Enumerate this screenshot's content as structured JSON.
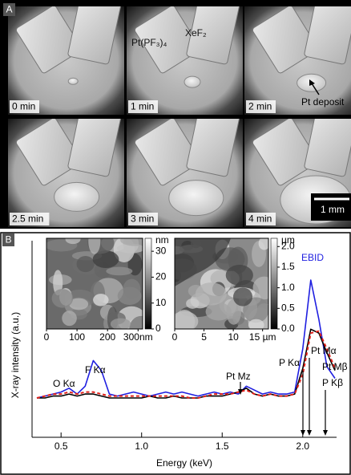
{
  "panel_a": {
    "label": "A",
    "frames": [
      "0 min",
      "1 min",
      "2 min",
      "2.5 min",
      "3 min",
      "4 min"
    ],
    "precursor_label": "Pt(PF₃)₄",
    "etchant_label": "XeF₂",
    "deposit_label": "Pt deposit",
    "scale_bar": "1 mm"
  },
  "panel_b_label": "B",
  "chart_data": {
    "type": "line",
    "xlabel": "Energy (keV)",
    "ylabel": "X-ray intensity (a.u.)",
    "xlim": [
      0.32,
      2.21
    ],
    "ylim": [
      0,
      10
    ],
    "xticks": [
      0.5,
      {
        "value": 1.0,
        "label": "1.0"
      },
      1.5,
      {
        "value": 2.0,
        "label": "2.0"
      }
    ],
    "x": [
      0.35,
      0.4,
      0.45,
      0.5,
      0.55,
      0.6,
      0.65,
      0.7,
      0.75,
      0.8,
      0.85,
      0.9,
      0.95,
      1.0,
      1.05,
      1.1,
      1.15,
      1.2,
      1.25,
      1.3,
      1.35,
      1.4,
      1.45,
      1.5,
      1.55,
      1.6,
      1.65,
      1.7,
      1.75,
      1.8,
      1.85,
      1.9,
      1.95,
      2.0,
      2.05,
      2.1,
      2.15,
      2.2
    ],
    "series": [
      {
        "name": "EBID",
        "color": "#1f1fe0",
        "dashed": false,
        "values": [
          2.0,
          2.1,
          2.2,
          2.3,
          2.5,
          2.2,
          2.6,
          3.9,
          3.4,
          2.2,
          2.1,
          2.2,
          2.3,
          2.2,
          2.1,
          2.2,
          2.3,
          2.2,
          2.3,
          2.2,
          2.1,
          2.2,
          2.3,
          2.2,
          2.3,
          2.2,
          2.6,
          2.4,
          2.2,
          2.3,
          2.2,
          2.2,
          2.3,
          4.5,
          8.0,
          6.0,
          3.6,
          3.0
        ]
      },
      {
        "color": "#000000",
        "dashed": false,
        "values": [
          2.0,
          2.0,
          2.1,
          2.1,
          2.2,
          2.1,
          2.2,
          2.2,
          2.1,
          2.0,
          2.0,
          2.0,
          2.0,
          2.0,
          2.1,
          2.0,
          2.0,
          2.1,
          2.0,
          2.0,
          2.0,
          2.1,
          2.1,
          2.1,
          2.2,
          2.3,
          2.5,
          2.2,
          2.1,
          2.2,
          2.1,
          2.1,
          2.2,
          3.5,
          5.5,
          5.3,
          4.3,
          3.4
        ]
      },
      {
        "color": "#e0201a",
        "dashed": true,
        "values": [
          2.0,
          2.1,
          2.2,
          2.2,
          2.3,
          2.2,
          2.3,
          2.3,
          2.2,
          2.1,
          2.1,
          2.1,
          2.1,
          2.1,
          2.1,
          2.1,
          2.1,
          2.1,
          2.1,
          2.0,
          2.0,
          2.1,
          2.2,
          2.2,
          2.2,
          2.3,
          2.4,
          2.2,
          2.1,
          2.2,
          2.1,
          2.1,
          2.2,
          3.2,
          5.3,
          5.4,
          4.5,
          3.5
        ]
      }
    ],
    "annotations": [
      "O Kα",
      "F Kα",
      "Pt Mz",
      "P Kα",
      "Pt Mα",
      "Pt Mβ",
      "P Kβ"
    ]
  },
  "insets": [
    {
      "xlim": [
        0,
        315
      ],
      "xticks": [
        0,
        100,
        200,
        {
          "value": 300,
          "label": "300nm"
        }
      ],
      "colorbar": {
        "unit": "nm",
        "lim": [
          0,
          35
        ],
        "ticks": [
          0,
          10,
          20,
          30
        ]
      }
    },
    {
      "xlim": [
        0,
        16
      ],
      "xticks": [
        0,
        5,
        10,
        {
          "value": 15,
          "label": "15 µm"
        }
      ],
      "colorbar": {
        "unit": "µm",
        "lim": [
          0,
          2.2
        ],
        "ticks": [
          {
            "value": 0,
            "label": "0.0"
          },
          0.5,
          {
            "value": 1,
            "label": "1.0"
          },
          1.5,
          {
            "value": 2,
            "label": "2.0"
          }
        ]
      }
    }
  ]
}
